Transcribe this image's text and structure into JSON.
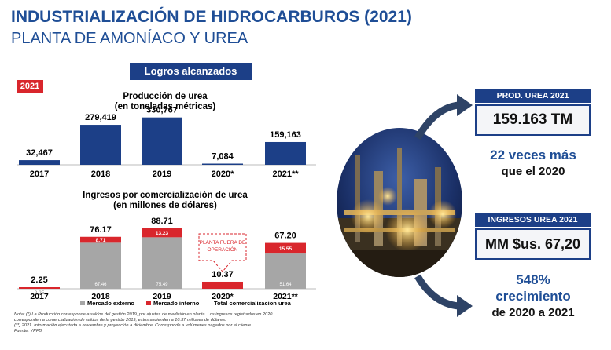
{
  "header": {
    "title": "INDUSTRIALIZACIÓN DE HIDROCARBUROS (2021)",
    "subtitle": "PLANTA DE AMONÍACO Y UREA",
    "banner": "Logros alcanzados",
    "year_badge": "2021"
  },
  "colors": {
    "navy": "#1c3f87",
    "title_blue": "#1f4e96",
    "red": "#d9262c",
    "gray": "#a6a6a6"
  },
  "chart_data": [
    {
      "type": "bar",
      "title": "Producción de urea",
      "subtitle": "(en toneladas métricas)",
      "categories": [
        "2017",
        "2018",
        "2019",
        "2020*",
        "2021**"
      ],
      "values": [
        32467,
        279419,
        330767,
        7084,
        159163
      ],
      "value_labels": [
        "32,467",
        "279,419",
        "330,767",
        "7,084",
        "159,163"
      ],
      "ylim": [
        0,
        340000
      ]
    },
    {
      "type": "bar",
      "stacked": true,
      "title": "Ingresos por comercialización de urea",
      "subtitle": "(en millones de dólares)",
      "categories": [
        "2017",
        "2018",
        "2019",
        "2020*",
        "2021**"
      ],
      "series": [
        {
          "name": "Mercado externo",
          "color": "#a6a6a6",
          "values": [
            0,
            67.46,
            75.49,
            0,
            51.64
          ],
          "labels": [
            "",
            "67.46",
            "75.49",
            "",
            "51.64"
          ]
        },
        {
          "name": "Mercado interno",
          "color": "#d9262c",
          "values": [
            2.25,
            8.71,
            13.23,
            10.37,
            15.55
          ],
          "labels": [
            "2.25",
            "8.71",
            "13.23",
            "",
            "15.55"
          ]
        }
      ],
      "totals": [
        "2.25",
        "76.17",
        "88.71",
        "10.37",
        "67.20"
      ],
      "total_legend": "Total comercializacion urea",
      "annotation": {
        "category": "2020*",
        "lines": [
          "PLANTA FUERA DE",
          "OPERACIÓN"
        ]
      },
      "ylim": [
        0,
        92
      ]
    }
  ],
  "kpis": [
    {
      "header": "PROD. UREA 2021",
      "value": "159.163 TM",
      "text1": "22 veces más",
      "text2": "que el 2020"
    },
    {
      "header": "INGRESOS UREA 2021",
      "value": "MM $us. 67,20",
      "text1": "548%",
      "text2": "crecimiento",
      "text3": "de 2020 a 2021"
    }
  ],
  "notes": [
    "Nota: (*) La Producción corresponde a saldos del gestión 2019, por ajustes de medición en planta. Los ingresos registrados en 2020",
    "corresponden a comercialización de saldos de la gestión 2019, estos ascienden a 10.37 millones de dólares.",
    "(**) 2021. Información ejecutada a noviembre y proyección a diciembre. Corresponde a volúmenes pagados por el cliente.",
    "Fuente: YPFB"
  ]
}
